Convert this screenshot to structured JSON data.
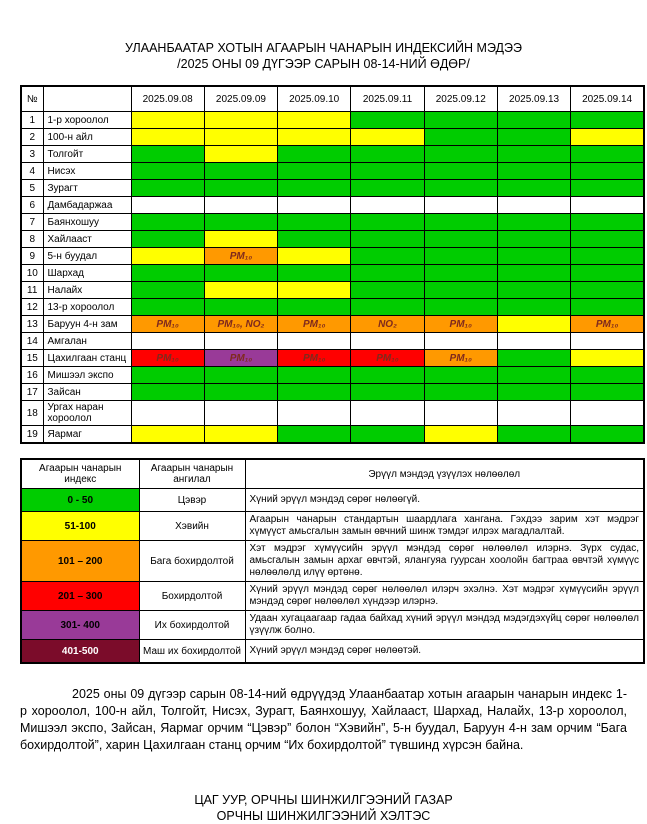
{
  "title": {
    "line1": "УЛААНБААТАР ХОТЫН АГААРЫН ЧАНАРЫН ИНДЕКСИЙН МЭДЭЭ",
    "line2": "/2025 ОНЫ 09 ДҮГЭЭР САРЫН 08-14-НИЙ ӨДӨР/"
  },
  "colors": {
    "green": "#00CC00",
    "yellow": "#FFFF00",
    "orange": "#FF9900",
    "red": "#FF0000",
    "purple": "#993A98",
    "darkred": "#7B0C2A",
    "white": "#FFFFFF",
    "cell_label_text": "#7F2A1D"
  },
  "aqi_table": {
    "no_header": "№",
    "name_header": "",
    "dates": [
      "2025.09.08",
      "2025.09.09",
      "2025.09.10",
      "2025.09.11",
      "2025.09.12",
      "2025.09.13",
      "2025.09.14"
    ],
    "rows": [
      {
        "no": "1",
        "name": "1-р хороолол",
        "cells": [
          [
            "yellow",
            ""
          ],
          [
            "yellow",
            ""
          ],
          [
            "yellow",
            ""
          ],
          [
            "green",
            ""
          ],
          [
            "green",
            ""
          ],
          [
            "green",
            ""
          ],
          [
            "green",
            ""
          ]
        ]
      },
      {
        "no": "2",
        "name": "100-н айл",
        "cells": [
          [
            "yellow",
            ""
          ],
          [
            "yellow",
            ""
          ],
          [
            "yellow",
            ""
          ],
          [
            "yellow",
            ""
          ],
          [
            "green",
            ""
          ],
          [
            "green",
            ""
          ],
          [
            "yellow",
            ""
          ]
        ]
      },
      {
        "no": "3",
        "name": "Толгойт",
        "cells": [
          [
            "green",
            ""
          ],
          [
            "yellow",
            ""
          ],
          [
            "green",
            ""
          ],
          [
            "green",
            ""
          ],
          [
            "green",
            ""
          ],
          [
            "green",
            ""
          ],
          [
            "green",
            ""
          ]
        ]
      },
      {
        "no": "4",
        "name": "Нисэх",
        "cells": [
          [
            "green",
            ""
          ],
          [
            "green",
            ""
          ],
          [
            "green",
            ""
          ],
          [
            "green",
            ""
          ],
          [
            "green",
            ""
          ],
          [
            "green",
            ""
          ],
          [
            "green",
            ""
          ]
        ]
      },
      {
        "no": "5",
        "name": "Зурагт",
        "cells": [
          [
            "green",
            ""
          ],
          [
            "green",
            ""
          ],
          [
            "green",
            ""
          ],
          [
            "green",
            ""
          ],
          [
            "green",
            ""
          ],
          [
            "green",
            ""
          ],
          [
            "green",
            ""
          ]
        ]
      },
      {
        "no": "6",
        "name": "Дамбадаржаа",
        "cells": [
          [
            "white",
            ""
          ],
          [
            "white",
            ""
          ],
          [
            "white",
            ""
          ],
          [
            "white",
            ""
          ],
          [
            "white",
            ""
          ],
          [
            "white",
            ""
          ],
          [
            "white",
            ""
          ]
        ]
      },
      {
        "no": "7",
        "name": "Баянхошуу",
        "cells": [
          [
            "green",
            ""
          ],
          [
            "green",
            ""
          ],
          [
            "green",
            ""
          ],
          [
            "green",
            ""
          ],
          [
            "green",
            ""
          ],
          [
            "green",
            ""
          ],
          [
            "green",
            ""
          ]
        ]
      },
      {
        "no": "8",
        "name": "Хайлааст",
        "cells": [
          [
            "green",
            ""
          ],
          [
            "yellow",
            ""
          ],
          [
            "green",
            ""
          ],
          [
            "green",
            ""
          ],
          [
            "green",
            ""
          ],
          [
            "green",
            ""
          ],
          [
            "green",
            ""
          ]
        ]
      },
      {
        "no": "9",
        "name": "5-н буудал",
        "cells": [
          [
            "yellow",
            ""
          ],
          [
            "orange",
            "PM₁₀"
          ],
          [
            "yellow",
            ""
          ],
          [
            "green",
            ""
          ],
          [
            "green",
            ""
          ],
          [
            "green",
            ""
          ],
          [
            "green",
            ""
          ]
        ]
      },
      {
        "no": "10",
        "name": "Шархад",
        "cells": [
          [
            "green",
            ""
          ],
          [
            "green",
            ""
          ],
          [
            "green",
            ""
          ],
          [
            "green",
            ""
          ],
          [
            "green",
            ""
          ],
          [
            "green",
            ""
          ],
          [
            "green",
            ""
          ]
        ]
      },
      {
        "no": "11",
        "name": "Налайх",
        "cells": [
          [
            "green",
            ""
          ],
          [
            "yellow",
            ""
          ],
          [
            "yellow",
            ""
          ],
          [
            "green",
            ""
          ],
          [
            "green",
            ""
          ],
          [
            "green",
            ""
          ],
          [
            "green",
            ""
          ]
        ]
      },
      {
        "no": "12",
        "name": "13-р хороолол",
        "cells": [
          [
            "green",
            ""
          ],
          [
            "green",
            ""
          ],
          [
            "green",
            ""
          ],
          [
            "green",
            ""
          ],
          [
            "green",
            ""
          ],
          [
            "green",
            ""
          ],
          [
            "green",
            ""
          ]
        ]
      },
      {
        "no": "13",
        "name": "Баруун 4-н зам",
        "cells": [
          [
            "orange",
            "PM₁₀"
          ],
          [
            "orange",
            "PM₁₀, NO₂"
          ],
          [
            "orange",
            "PM₁₀"
          ],
          [
            "orange",
            "NO₂"
          ],
          [
            "orange",
            "PM₁₀"
          ],
          [
            "yellow",
            ""
          ],
          [
            "orange",
            "PM₁₀"
          ]
        ]
      },
      {
        "no": "14",
        "name": "Амгалан",
        "cells": [
          [
            "white",
            ""
          ],
          [
            "white",
            ""
          ],
          [
            "white",
            ""
          ],
          [
            "white",
            ""
          ],
          [
            "white",
            ""
          ],
          [
            "white",
            ""
          ],
          [
            "white",
            ""
          ]
        ]
      },
      {
        "no": "15",
        "name": "Цахилгаан станц",
        "cells": [
          [
            "red",
            "PM₁₀"
          ],
          [
            "purple",
            "PM₁₀"
          ],
          [
            "red",
            "PM₁₀"
          ],
          [
            "red",
            "PM₁₀"
          ],
          [
            "orange",
            "PM₁₀"
          ],
          [
            "green",
            ""
          ],
          [
            "yellow",
            ""
          ]
        ]
      },
      {
        "no": "16",
        "name": "Мишээл экспо",
        "cells": [
          [
            "green",
            ""
          ],
          [
            "green",
            ""
          ],
          [
            "green",
            ""
          ],
          [
            "green",
            ""
          ],
          [
            "green",
            ""
          ],
          [
            "green",
            ""
          ],
          [
            "green",
            ""
          ]
        ]
      },
      {
        "no": "17",
        "name": "Зайсан",
        "cells": [
          [
            "green",
            ""
          ],
          [
            "green",
            ""
          ],
          [
            "green",
            ""
          ],
          [
            "green",
            ""
          ],
          [
            "green",
            ""
          ],
          [
            "green",
            ""
          ],
          [
            "green",
            ""
          ]
        ]
      },
      {
        "no": "18",
        "name": "Ургах наран хороолол",
        "cells": [
          [
            "white",
            ""
          ],
          [
            "white",
            ""
          ],
          [
            "white",
            ""
          ],
          [
            "white",
            ""
          ],
          [
            "white",
            ""
          ],
          [
            "white",
            ""
          ],
          [
            "white",
            ""
          ]
        ]
      },
      {
        "no": "19",
        "name": "Яармаг",
        "cells": [
          [
            "yellow",
            ""
          ],
          [
            "yellow",
            ""
          ],
          [
            "green",
            ""
          ],
          [
            "green",
            ""
          ],
          [
            "yellow",
            ""
          ],
          [
            "green",
            ""
          ],
          [
            "green",
            ""
          ]
        ]
      }
    ]
  },
  "legend": {
    "headers": [
      "Агаарын чанарын индекс",
      "Агаарын чанарын ангилал",
      "Эрүүл мэндэд үзүүлэх нөлөөлөл"
    ],
    "rows": [
      {
        "range": "0 - 50",
        "color": "green",
        "category": "Цэвэр",
        "effect": "Хүний эрүүл мэндэд сөрөг нөлөөгүй."
      },
      {
        "range": "51-100",
        "color": "yellow",
        "category": "Хэвийн",
        "effect": "Агаарын чанарын стандартын шаардлага хангана. Гэхдээ зарим хэт мэдрэг хүмүүст амьсгалын замын өвчний шинж тэмдэг илрэх магадлалтай."
      },
      {
        "range": "101 – 200",
        "color": "orange",
        "category": "Бага бохирдолтой",
        "effect": "Хэт мэдрэг хүмүүсийн эрүүл мэндэд сөрөг нөлөөлөл илэрнэ. Зүрх судас, амьсгалын замын архаг өвчтэй, ялангуяа гуурсан хоолойн багтраа өвчтэй хүмүүс нөлөөлөлд илүү өртөнө."
      },
      {
        "range": "201 – 300",
        "color": "red",
        "category": "Бохирдолтой",
        "effect": "Хүний эрүүл мэндэд сөрөг нөлөөлөл илэрч эхэлнэ. Хэт мэдрэг хүмүүсийн эрүүл мэндэд сөрөг нөлөөлөл хүндээр илэрнэ."
      },
      {
        "range": "301- 400",
        "color": "purple",
        "category": "Их бохирдолтой",
        "effect": "Удаан хугацаагаар гадаа байхад хүний эрүүл мэндэд мэдэгдэхүйц сөрөг нөлөөлөл үзүүлж болно."
      },
      {
        "range": "401-500",
        "color": "darkred",
        "category": "Маш их бохирдолтой",
        "effect": "Хүний эрүүл мэндэд сөрөг нөлөөтэй."
      }
    ]
  },
  "summary": "2025 оны 09 дүгээр сарын 08-14-ний өдрүүдэд Улаанбаатар хотын агаарын чанарын индекс 1-р хороолол, 100-н айл, Толгойт, Нисэх, Зурагт, Баянхошуу, Хайлааст, Шархад, Налайх, 13-р хороолол, Мишээл экспо, Зайсан, Яармаг орчим “Цэвэр” болон “Хэвийн”, 5-н буудал, Баруун 4-н зам орчим “Бага бохирдолтой”, харин Цахилгаан станц орчим “Их бохирдолтой” түвшинд хүрсэн байна.",
  "footer": {
    "line1": "ЦАГ УУР, ОРЧНЫ ШИНЖИЛГЭЭНИЙ ГАЗАР",
    "line2": "ОРЧНЫ ШИНЖИЛГЭЭНИЙ ХЭЛТЭС"
  }
}
